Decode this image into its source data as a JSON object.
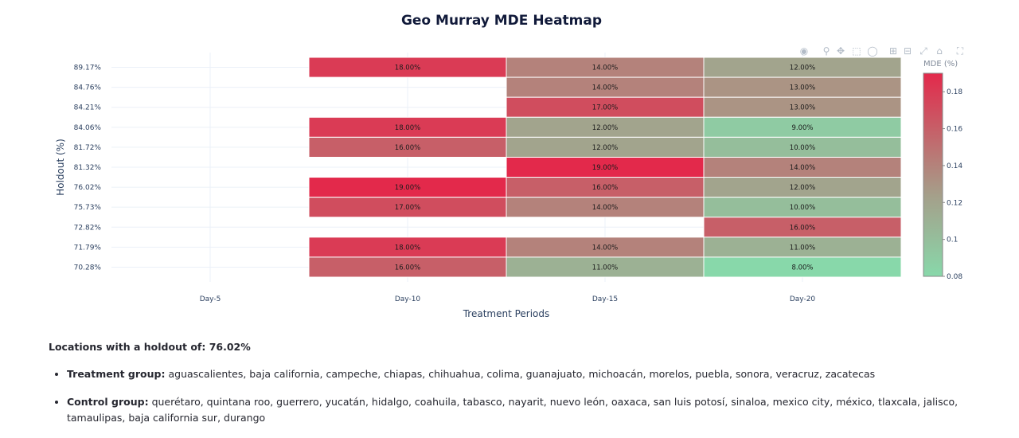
{
  "chart_data": {
    "type": "heatmap",
    "title": "Geo Murray MDE Heatmap",
    "xlabel": "Treatment Periods",
    "ylabel": "Holdout (%)",
    "x": [
      "Day-5",
      "Day-10",
      "Day-15",
      "Day-20"
    ],
    "y": [
      "89.17%",
      "84.76%",
      "84.21%",
      "84.06%",
      "81.72%",
      "81.32%",
      "76.02%",
      "75.73%",
      "72.82%",
      "71.79%",
      "70.28%"
    ],
    "z": [
      [
        null,
        0.18,
        0.14,
        0.12
      ],
      [
        null,
        null,
        0.14,
        0.13
      ],
      [
        null,
        null,
        0.17,
        0.13
      ],
      [
        null,
        0.18,
        0.12,
        0.09
      ],
      [
        null,
        0.16,
        0.12,
        0.1
      ],
      [
        null,
        null,
        0.19,
        0.14
      ],
      [
        null,
        0.19,
        0.16,
        0.12
      ],
      [
        null,
        0.17,
        0.14,
        0.1
      ],
      [
        null,
        null,
        null,
        0.16
      ],
      [
        null,
        0.18,
        0.14,
        0.11
      ],
      [
        null,
        0.16,
        0.11,
        0.08
      ]
    ],
    "text": [
      [
        "",
        "18.00%",
        "14.00%",
        "12.00%"
      ],
      [
        "",
        "",
        "14.00%",
        "13.00%"
      ],
      [
        "",
        "",
        "17.00%",
        "13.00%"
      ],
      [
        "",
        "18.00%",
        "12.00%",
        "9.00%"
      ],
      [
        "",
        "16.00%",
        "12.00%",
        "10.00%"
      ],
      [
        "",
        "",
        "19.00%",
        "14.00%"
      ],
      [
        "",
        "19.00%",
        "16.00%",
        "12.00%"
      ],
      [
        "",
        "17.00%",
        "14.00%",
        "10.00%"
      ],
      [
        "",
        "",
        "",
        "16.00%"
      ],
      [
        "",
        "18.00%",
        "14.00%",
        "11.00%"
      ],
      [
        "",
        "16.00%",
        "11.00%",
        "8.00%"
      ]
    ],
    "colorscale": {
      "min": 0.08,
      "max": 0.19,
      "low_color": "#88d8aa",
      "mid_color": "#a59f8a",
      "high_color": "#e3294b"
    },
    "colorbar": {
      "title": "MDE (%)",
      "ticks": [
        "0.08",
        "0.1",
        "0.12",
        "0.14",
        "0.16",
        "0.18"
      ]
    },
    "grid": true
  },
  "modebar": {
    "icons": [
      "camera-icon",
      "zoom-icon",
      "pan-icon",
      "box-select-icon",
      "lasso-select-icon",
      "zoom-in-icon",
      "zoom-out-icon",
      "autoscale-icon",
      "reset-axes-icon",
      "fullscreen-icon"
    ]
  },
  "info": {
    "heading": "Locations with a holdout of: 76.02%",
    "treatment_label": "Treatment group:",
    "treatment_value": "aguascalientes, baja california, campeche, chiapas, chihuahua, colima, guanajuato, michoacán, morelos, puebla, sonora, veracruz, zacatecas",
    "control_label": "Control group:",
    "control_value": "querétaro, quintana roo, guerrero, yucatán, hidalgo, coahuila, tabasco, nayarit, nuevo león, oaxaca, san luis potosí, sinaloa, mexico city, méxico, tlaxcala, jalisco, tamaulipas, baja california sur, durango"
  }
}
